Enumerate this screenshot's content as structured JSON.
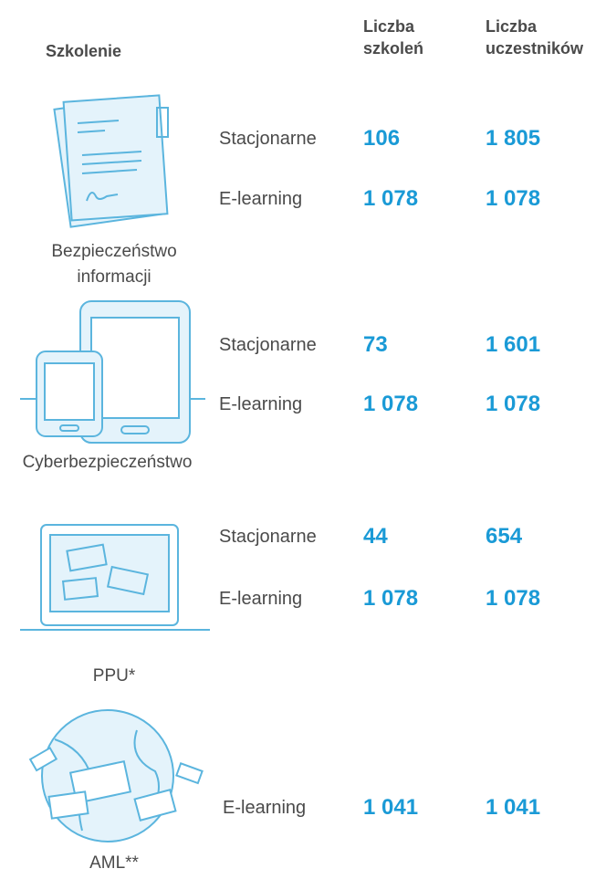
{
  "header": {
    "training": "Szkolenie",
    "count": "Liczba szkoleń",
    "participants": "Liczba uczestników"
  },
  "trainings": [
    {
      "name": "Bezpieczeństwo informacji",
      "rows": [
        {
          "mode": "Stacjonarne",
          "count": "106",
          "participants": "1 805"
        },
        {
          "mode": "E-learning",
          "count": "1 078",
          "participants": "1 078"
        }
      ]
    },
    {
      "name": "Cyberbezpieczeństwo",
      "rows": [
        {
          "mode": "Stacjonarne",
          "count": "73",
          "participants": "1 601"
        },
        {
          "mode": "E-learning",
          "count": "1 078",
          "participants": "1 078"
        }
      ]
    },
    {
      "name": "PPU*",
      "rows": [
        {
          "mode": "Stacjonarne",
          "count": "44",
          "participants": "654"
        },
        {
          "mode": "E-learning",
          "count": "1 078",
          "participants": "1 078"
        }
      ]
    },
    {
      "name": "AML**",
      "rows": [
        {
          "mode": "E-learning",
          "count": "1 041",
          "participants": "1 041"
        }
      ]
    }
  ]
}
